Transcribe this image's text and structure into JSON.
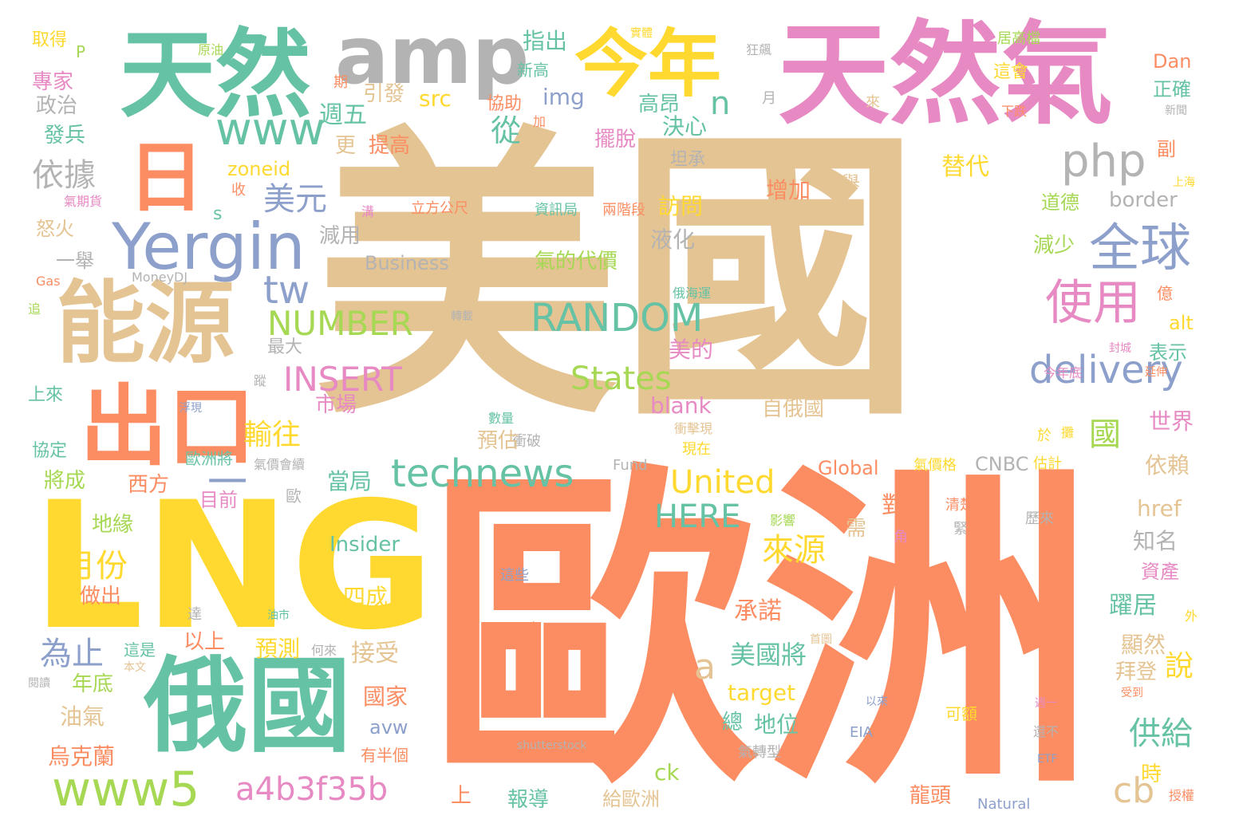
{
  "palette": {
    "tan": "#e5c494",
    "orange": "#fc8d62",
    "teal": "#66c2a5",
    "pink": "#e78ac3",
    "yellow": "#ffd92f",
    "green": "#a6d854",
    "gray": "#b3b3b3",
    "blue": "#8da0cb"
  },
  "words": [
    {
      "text": "美國",
      "color": "tan"
    },
    {
      "text": "歐洲",
      "color": "orange"
    },
    {
      "text": "LNG",
      "color": "yellow"
    },
    {
      "text": "天然氣",
      "color": "pink"
    },
    {
      "text": "天然",
      "color": "teal"
    },
    {
      "text": "amp",
      "color": "gray"
    },
    {
      "text": "今年",
      "color": "yellow"
    },
    {
      "text": "能源",
      "color": "tan"
    },
    {
      "text": "俄國",
      "color": "teal"
    },
    {
      "text": "出口",
      "color": "orange"
    },
    {
      "text": "日",
      "color": "orange"
    },
    {
      "text": "Yergin",
      "color": "blue"
    },
    {
      "text": "www",
      "color": "teal"
    },
    {
      "text": "php",
      "color": "gray"
    },
    {
      "text": "全球",
      "color": "blue"
    },
    {
      "text": "使用",
      "color": "pink"
    },
    {
      "text": "delivery",
      "color": "blue"
    },
    {
      "text": "technews",
      "color": "teal"
    },
    {
      "text": "RANDOM",
      "color": "teal"
    },
    {
      "text": "NUMBER",
      "color": "green"
    },
    {
      "text": "INSERT",
      "color": "pink"
    },
    {
      "text": "States",
      "color": "green"
    },
    {
      "text": "United",
      "color": "yellow"
    },
    {
      "text": "HERE",
      "color": "teal"
    },
    {
      "text": "www5",
      "color": "green"
    },
    {
      "text": "a4b3f35b",
      "color": "pink"
    },
    {
      "text": "tw",
      "color": "blue"
    },
    {
      "text": "依據",
      "color": "gray"
    },
    {
      "text": "美元",
      "color": "blue"
    },
    {
      "text": "國",
      "color": "green"
    },
    {
      "text": "n",
      "color": "teal"
    },
    {
      "text": "cb",
      "color": "tan"
    },
    {
      "text": "a",
      "color": "tan"
    },
    {
      "text": "一",
      "color": "blue"
    },
    {
      "text": "月份",
      "color": "yellow"
    },
    {
      "text": "來源",
      "color": "yellow"
    },
    {
      "text": "為止",
      "color": "blue"
    },
    {
      "text": "供給",
      "color": "teal"
    },
    {
      "text": "說",
      "color": "yellow"
    },
    {
      "text": "輸往",
      "color": "yellow"
    },
    {
      "text": "美國將",
      "color": "teal"
    },
    {
      "text": "從",
      "color": "teal"
    },
    {
      "text": "週五",
      "color": "teal"
    },
    {
      "text": "src",
      "color": "yellow"
    },
    {
      "text": "img",
      "color": "blue"
    },
    {
      "text": "引發",
      "color": "tan"
    },
    {
      "text": "指出",
      "color": "teal"
    },
    {
      "text": "高昂",
      "color": "teal"
    },
    {
      "text": "決心",
      "color": "teal"
    },
    {
      "text": "擺脫",
      "color": "pink"
    },
    {
      "text": "提高",
      "color": "orange"
    },
    {
      "text": "更",
      "color": "tan"
    },
    {
      "text": "協助",
      "color": "orange"
    },
    {
      "text": "新高",
      "color": "teal"
    },
    {
      "text": "坦承",
      "color": "gray"
    },
    {
      "text": "zoneid",
      "color": "yellow"
    },
    {
      "text": "訪問",
      "color": "yellow"
    },
    {
      "text": "液化",
      "color": "gray"
    },
    {
      "text": "減用",
      "color": "gray"
    },
    {
      "text": "Business",
      "color": "gray"
    },
    {
      "text": "氣的代價",
      "color": "green"
    },
    {
      "text": "資訊局",
      "color": "teal"
    },
    {
      "text": "立方公尺",
      "color": "orange"
    },
    {
      "text": "兩階段",
      "color": "orange"
    },
    {
      "text": "增加",
      "color": "orange"
    },
    {
      "text": "之舉",
      "color": "tan"
    },
    {
      "text": "替代",
      "color": "yellow"
    },
    {
      "text": "border",
      "color": "gray"
    },
    {
      "text": "道德",
      "color": "green"
    },
    {
      "text": "減少",
      "color": "green"
    },
    {
      "text": "副",
      "color": "orange"
    },
    {
      "text": "上海",
      "color": "yellow"
    },
    {
      "text": "Dan",
      "color": "orange"
    },
    {
      "text": "這會",
      "color": "yellow"
    },
    {
      "text": "正確",
      "color": "teal"
    },
    {
      "text": "居高檔",
      "color": "green"
    },
    {
      "text": "下跌",
      "color": "orange"
    },
    {
      "text": "新聞",
      "color": "gray"
    },
    {
      "text": "實體",
      "color": "yellow"
    },
    {
      "text": "狂飆",
      "color": "gray"
    },
    {
      "text": "月",
      "color": "gray"
    },
    {
      "text": "來",
      "color": "tan"
    },
    {
      "text": "期",
      "color": "orange"
    },
    {
      "text": "加",
      "color": "orange"
    },
    {
      "text": "原油",
      "color": "green"
    },
    {
      "text": "取得",
      "color": "yellow"
    },
    {
      "text": "P",
      "color": "green"
    },
    {
      "text": "專家",
      "color": "pink"
    },
    {
      "text": "政治",
      "color": "gray"
    },
    {
      "text": "發兵",
      "color": "teal"
    },
    {
      "text": "氣期貨",
      "color": "pink"
    },
    {
      "text": "收",
      "color": "orange"
    },
    {
      "text": "s",
      "color": "teal"
    },
    {
      "text": "怒火",
      "color": "tan"
    },
    {
      "text": "一舉",
      "color": "gray"
    },
    {
      "text": "Gas",
      "color": "orange"
    },
    {
      "text": "MoneyDJ",
      "color": "gray"
    },
    {
      "text": "追",
      "color": "green"
    },
    {
      "text": "溝",
      "color": "pink"
    },
    {
      "text": "最大",
      "color": "gray"
    },
    {
      "text": "轉載",
      "color": "gray"
    },
    {
      "text": "市場",
      "color": "pink"
    },
    {
      "text": "蹤",
      "color": "gray"
    },
    {
      "text": "上來",
      "color": "teal"
    },
    {
      "text": "浮現",
      "color": "blue"
    },
    {
      "text": "數量",
      "color": "teal"
    },
    {
      "text": "協定",
      "color": "teal"
    },
    {
      "text": "歐洲將",
      "color": "teal"
    },
    {
      "text": "氣價會續",
      "color": "gray"
    },
    {
      "text": "Fund",
      "color": "gray"
    },
    {
      "text": "衝破",
      "color": "gray"
    },
    {
      "text": "預估",
      "color": "tan"
    },
    {
      "text": "blank",
      "color": "pink"
    },
    {
      "text": "衝擊現",
      "color": "tan"
    },
    {
      "text": "現在",
      "color": "yellow"
    },
    {
      "text": "美的",
      "color": "pink"
    },
    {
      "text": "俄海運",
      "color": "teal"
    },
    {
      "text": "億",
      "color": "orange"
    },
    {
      "text": "alt",
      "color": "yellow"
    },
    {
      "text": "表示",
      "color": "teal"
    },
    {
      "text": "封城",
      "color": "pink"
    },
    {
      "text": "今年底",
      "color": "pink"
    },
    {
      "text": "延伸",
      "color": "orange"
    },
    {
      "text": "自俄國",
      "color": "tan"
    },
    {
      "text": "世界",
      "color": "pink"
    },
    {
      "text": "於",
      "color": "yellow"
    },
    {
      "text": "攤",
      "color": "yellow"
    },
    {
      "text": "依賴",
      "color": "tan"
    },
    {
      "text": "CNBC",
      "color": "gray"
    },
    {
      "text": "Global",
      "color": "orange"
    },
    {
      "text": "氣價格",
      "color": "yellow"
    },
    {
      "text": "估計",
      "color": "yellow"
    },
    {
      "text": "西方",
      "color": "orange"
    },
    {
      "text": "將成",
      "color": "green"
    },
    {
      "text": "當局",
      "color": "teal"
    },
    {
      "text": "目前",
      "color": "pink"
    },
    {
      "text": "歐",
      "color": "gray"
    },
    {
      "text": "地緣",
      "color": "green"
    },
    {
      "text": "href",
      "color": "tan"
    },
    {
      "text": "知名",
      "color": "gray"
    },
    {
      "text": "對",
      "color": "orange"
    },
    {
      "text": "需",
      "color": "tan"
    },
    {
      "text": "清楚",
      "color": "orange"
    },
    {
      "text": "緊",
      "color": "gray"
    },
    {
      "text": "歷來",
      "color": "gray"
    },
    {
      "text": "影響",
      "color": "green"
    },
    {
      "text": "角",
      "color": "pink"
    },
    {
      "text": "Insider",
      "color": "teal"
    },
    {
      "text": "資產",
      "color": "pink"
    },
    {
      "text": "做出",
      "color": "orange"
    },
    {
      "text": "這些",
      "color": "blue"
    },
    {
      "text": "四成",
      "color": "yellow"
    },
    {
      "text": "躍居",
      "color": "teal"
    },
    {
      "text": "外",
      "color": "yellow"
    },
    {
      "text": "達",
      "color": "gray"
    },
    {
      "text": "油市",
      "color": "teal"
    },
    {
      "text": "承諾",
      "color": "orange"
    },
    {
      "text": "以上",
      "color": "orange"
    },
    {
      "text": "顯然",
      "color": "tan"
    },
    {
      "text": "才",
      "color": "orange"
    },
    {
      "text": "首圖",
      "color": "tan"
    },
    {
      "text": "預測",
      "color": "yellow"
    },
    {
      "text": "何來",
      "color": "gray"
    },
    {
      "text": "這是",
      "color": "teal"
    },
    {
      "text": "接受",
      "color": "tan"
    },
    {
      "text": "拜登",
      "color": "tan"
    },
    {
      "text": "本文",
      "color": "tan"
    },
    {
      "text": "閱讀",
      "color": "gray"
    },
    {
      "text": "年底",
      "color": "green"
    },
    {
      "text": "國家",
      "color": "orange"
    },
    {
      "text": "target",
      "color": "yellow"
    },
    {
      "text": "受到",
      "color": "orange"
    },
    {
      "text": "週一",
      "color": "pink"
    },
    {
      "text": "以來",
      "color": "blue"
    },
    {
      "text": "油氣",
      "color": "tan"
    },
    {
      "text": "avw",
      "color": "blue"
    },
    {
      "text": "總",
      "color": "teal"
    },
    {
      "text": "地位",
      "color": "teal"
    },
    {
      "text": "可額",
      "color": "yellow"
    },
    {
      "text": "EIA",
      "color": "blue"
    },
    {
      "text": "還不",
      "color": "gray"
    },
    {
      "text": "烏克蘭",
      "color": "orange"
    },
    {
      "text": "有半個",
      "color": "orange"
    },
    {
      "text": "shutterstock",
      "color": "gray"
    },
    {
      "text": "氣轉型",
      "color": "gray"
    },
    {
      "text": "時",
      "color": "yellow"
    },
    {
      "text": "ck",
      "color": "green"
    },
    {
      "text": "ETF",
      "color": "blue"
    },
    {
      "text": "上",
      "color": "orange"
    },
    {
      "text": "報導",
      "color": "teal"
    },
    {
      "text": "給歐洲",
      "color": "tan"
    },
    {
      "text": "龍頭",
      "color": "orange"
    },
    {
      "text": "Natural",
      "color": "blue"
    },
    {
      "text": "授權",
      "color": "orange"
    }
  ]
}
